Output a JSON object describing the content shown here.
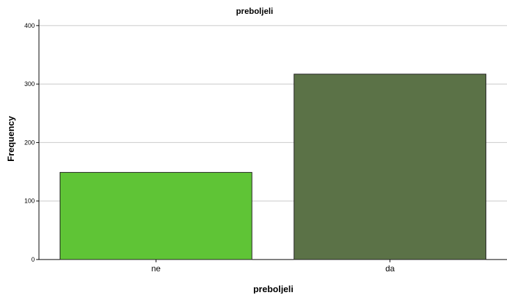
{
  "chart_data": {
    "type": "bar",
    "title": "preboljeli",
    "xlabel": "preboljeli",
    "ylabel": "Frequency",
    "categories": [
      "ne",
      "da"
    ],
    "values": [
      149,
      317
    ],
    "ylim": [
      0,
      420
    ],
    "yticks": [
      0,
      100,
      200,
      300,
      400
    ],
    "grid": true,
    "colors": [
      "#5fc436",
      "#5b7247"
    ]
  }
}
